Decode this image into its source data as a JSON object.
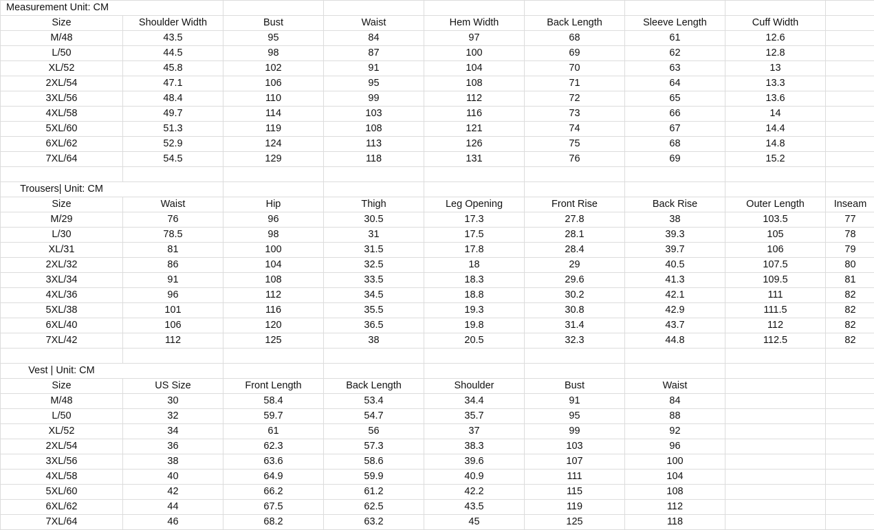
{
  "sections": [
    {
      "title": "Measurement Unit: CM",
      "title_align": "left",
      "headers": [
        "Size",
        "Shoulder Width",
        "Bust",
        "Waist",
        "Hem Width",
        "Back Length",
        "Sleeve Length",
        "Cuff Width",
        ""
      ],
      "rows": [
        [
          "M/48",
          "43.5",
          "95",
          "84",
          "97",
          "68",
          "61",
          "12.6",
          ""
        ],
        [
          "L/50",
          "44.5",
          "98",
          "87",
          "100",
          "69",
          "62",
          "12.8",
          ""
        ],
        [
          "XL/52",
          "45.8",
          "102",
          "91",
          "104",
          "70",
          "63",
          "13",
          ""
        ],
        [
          "2XL/54",
          "47.1",
          "106",
          "95",
          "108",
          "71",
          "64",
          "13.3",
          ""
        ],
        [
          "3XL/56",
          "48.4",
          "110",
          "99",
          "112",
          "72",
          "65",
          "13.6",
          ""
        ],
        [
          "4XL/58",
          "49.7",
          "114",
          "103",
          "116",
          "73",
          "66",
          "14",
          ""
        ],
        [
          "5XL/60",
          "51.3",
          "119",
          "108",
          "121",
          "74",
          "67",
          "14.4",
          ""
        ],
        [
          "6XL/62",
          "52.9",
          "124",
          "113",
          "126",
          "75",
          "68",
          "14.8",
          ""
        ],
        [
          "7XL/64",
          "54.5",
          "129",
          "118",
          "131",
          "76",
          "69",
          "15.2",
          ""
        ]
      ]
    },
    {
      "title": "Trousers| Unit: CM",
      "title_align": "center",
      "headers": [
        "Size",
        "Waist",
        "Hip",
        "Thigh",
        "Leg Opening",
        "Front Rise",
        "Back Rise",
        "Outer Length",
        "Inseam"
      ],
      "rows": [
        [
          "M/29",
          "76",
          "96",
          "30.5",
          "17.3",
          "27.8",
          "38",
          "103.5",
          "77"
        ],
        [
          "L/30",
          "78.5",
          "98",
          "31",
          "17.5",
          "28.1",
          "39.3",
          "105",
          "78"
        ],
        [
          "XL/31",
          "81",
          "100",
          "31.5",
          "17.8",
          "28.4",
          "39.7",
          "106",
          "79"
        ],
        [
          "2XL/32",
          "86",
          "104",
          "32.5",
          "18",
          "29",
          "40.5",
          "107.5",
          "80"
        ],
        [
          "3XL/34",
          "91",
          "108",
          "33.5",
          "18.3",
          "29.6",
          "41.3",
          "109.5",
          "81"
        ],
        [
          "4XL/36",
          "96",
          "112",
          "34.5",
          "18.8",
          "30.2",
          "42.1",
          "111",
          "82"
        ],
        [
          "5XL/38",
          "101",
          "116",
          "35.5",
          "19.3",
          "30.8",
          "42.9",
          "111.5",
          "82"
        ],
        [
          "6XL/40",
          "106",
          "120",
          "36.5",
          "19.8",
          "31.4",
          "43.7",
          "112",
          "82"
        ],
        [
          "7XL/42",
          "112",
          "125",
          "38",
          "20.5",
          "32.3",
          "44.8",
          "112.5",
          "82"
        ]
      ]
    },
    {
      "title": "Vest | Unit: CM",
      "title_align": "center",
      "headers": [
        "Size",
        "US Size",
        "Front Length",
        "Back Length",
        "Shoulder",
        "Bust",
        "Waist",
        "",
        ""
      ],
      "rows": [
        [
          "M/48",
          "30",
          "58.4",
          "53.4",
          "34.4",
          "91",
          "84",
          "",
          ""
        ],
        [
          "L/50",
          "32",
          "59.7",
          "54.7",
          "35.7",
          "95",
          "88",
          "",
          ""
        ],
        [
          "XL/52",
          "34",
          "61",
          "56",
          "37",
          "99",
          "92",
          "",
          ""
        ],
        [
          "2XL/54",
          "36",
          "62.3",
          "57.3",
          "38.3",
          "103",
          "96",
          "",
          ""
        ],
        [
          "3XL/56",
          "38",
          "63.6",
          "58.6",
          "39.6",
          "107",
          "100",
          "",
          ""
        ],
        [
          "4XL/58",
          "40",
          "64.9",
          "59.9",
          "40.9",
          "111",
          "104",
          "",
          ""
        ],
        [
          "5XL/60",
          "42",
          "66.2",
          "61.2",
          "42.2",
          "115",
          "108",
          "",
          ""
        ],
        [
          "6XL/62",
          "44",
          "67.5",
          "62.5",
          "43.5",
          "119",
          "112",
          "",
          ""
        ],
        [
          "7XL/64",
          "46",
          "68.2",
          "63.2",
          "45",
          "125",
          "118",
          "",
          ""
        ]
      ]
    }
  ]
}
